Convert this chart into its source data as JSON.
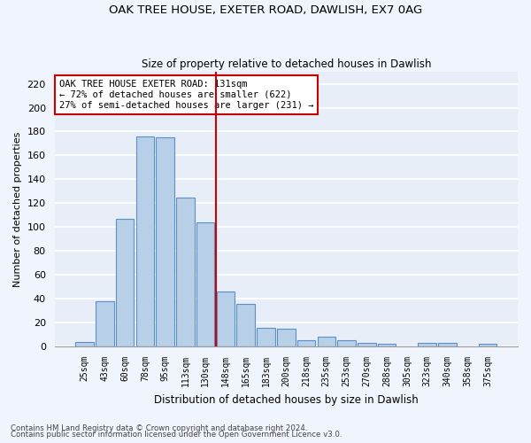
{
  "title1": "OAK TREE HOUSE, EXETER ROAD, DAWLISH, EX7 0AG",
  "title2": "Size of property relative to detached houses in Dawlish",
  "xlabel": "Distribution of detached houses by size in Dawlish",
  "ylabel": "Number of detached properties",
  "categories": [
    "25sqm",
    "43sqm",
    "60sqm",
    "78sqm",
    "95sqm",
    "113sqm",
    "130sqm",
    "148sqm",
    "165sqm",
    "183sqm",
    "200sqm",
    "218sqm",
    "235sqm",
    "253sqm",
    "270sqm",
    "288sqm",
    "305sqm",
    "323sqm",
    "340sqm",
    "358sqm",
    "375sqm"
  ],
  "values": [
    4,
    38,
    107,
    176,
    175,
    125,
    104,
    46,
    36,
    16,
    15,
    5,
    8,
    5,
    3,
    2,
    0,
    3,
    3,
    0,
    2
  ],
  "bar_color": "#b8cfe8",
  "bar_edge_color": "#5b8fc9",
  "background_color": "#e8eef8",
  "fig_background_color": "#f0f4fc",
  "grid_color": "#ffffff",
  "ylim": [
    0,
    230
  ],
  "yticks": [
    0,
    20,
    40,
    60,
    80,
    100,
    120,
    140,
    160,
    180,
    200,
    220
  ],
  "annotation_line1": "OAK TREE HOUSE EXETER ROAD: 131sqm",
  "annotation_line2": "← 72% of detached houses are smaller (622)",
  "annotation_line3": "27% of semi-detached houses are larger (231) →",
  "vline_color": "#cc0000",
  "vline_x": 6.5,
  "annotation_box_color": "#ffffff",
  "annotation_box_edge": "#cc0000",
  "footer1": "Contains HM Land Registry data © Crown copyright and database right 2024.",
  "footer2": "Contains public sector information licensed under the Open Government Licence v3.0."
}
